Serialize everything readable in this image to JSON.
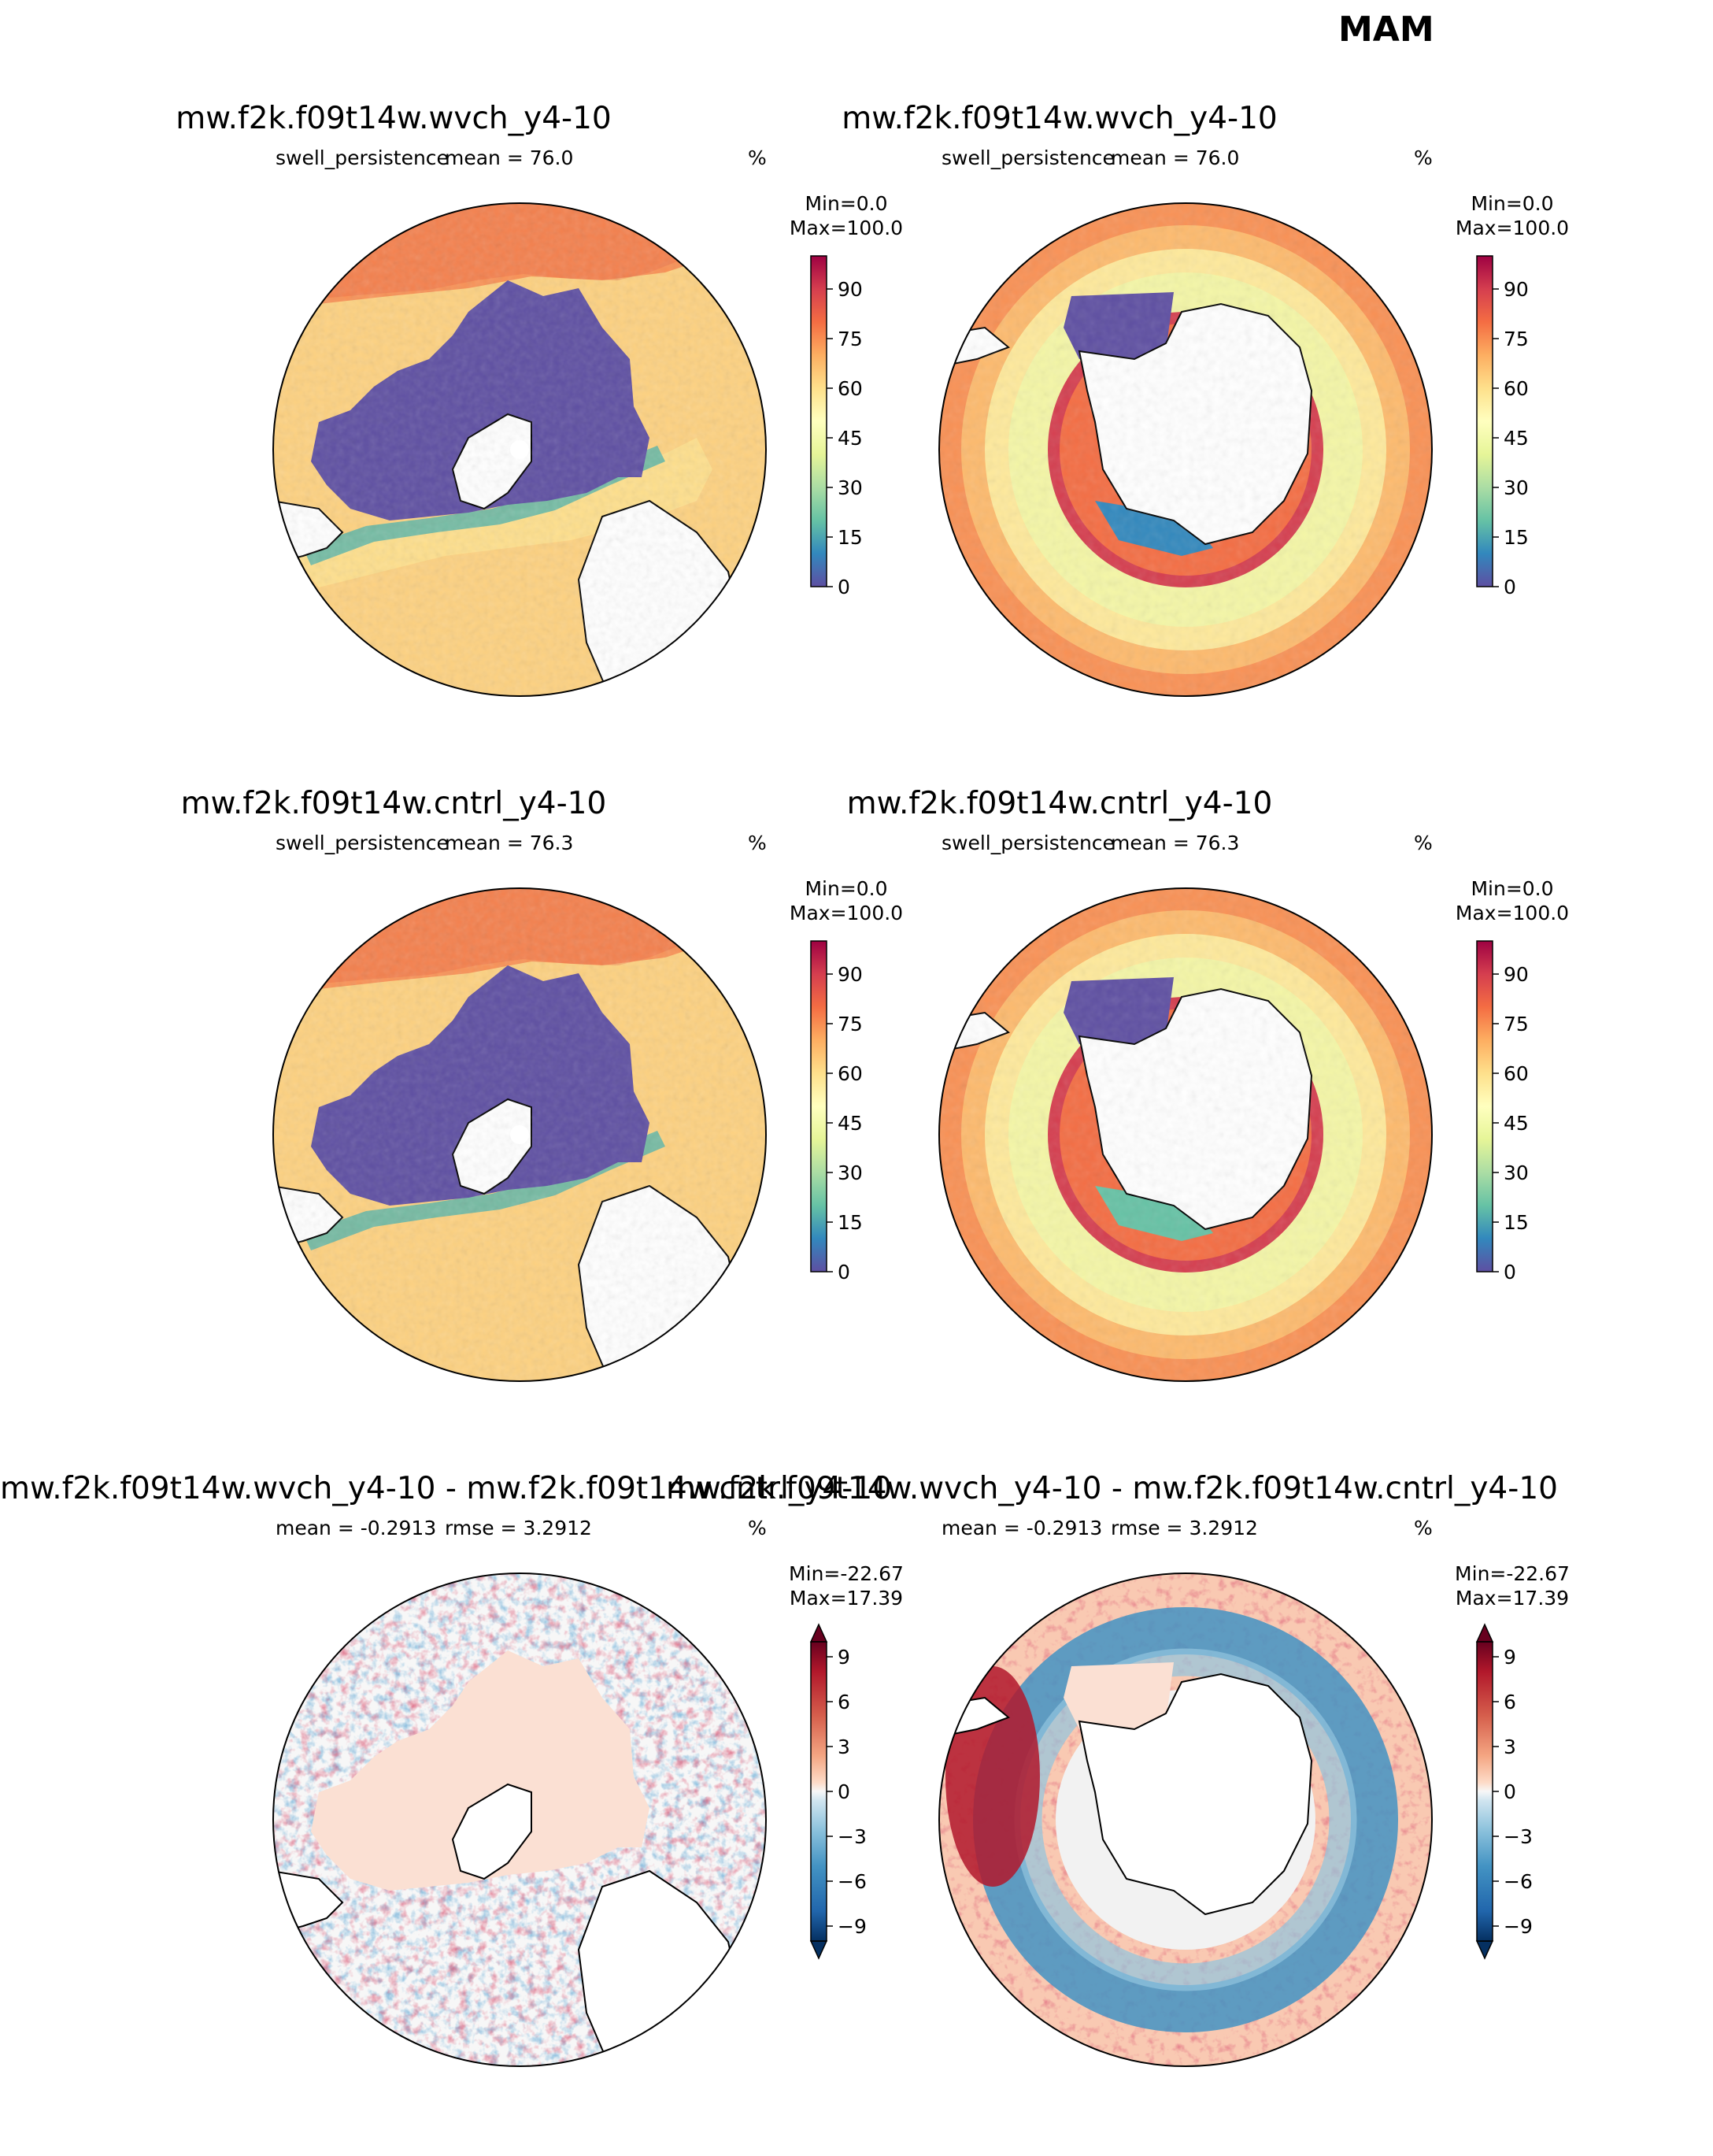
{
  "suptitle": "MAM",
  "chart_data": [
    {
      "type": "heatmap",
      "projection": "north-polar",
      "title": "mw.f2k.f09t14w.wvch_y4-10",
      "left_label": "swell_persistence",
      "center_label": "mean = 76.0",
      "units": "%",
      "minmax": "Min=0.0\nMax=100.0",
      "colormap": "Spectral_r",
      "vmin": 0,
      "vmax": 100,
      "cbar_ticks": [
        "0",
        "15",
        "30",
        "45",
        "60",
        "75",
        "90"
      ],
      "extend": "neither"
    },
    {
      "type": "heatmap",
      "projection": "south-polar",
      "title": "mw.f2k.f09t14w.wvch_y4-10",
      "left_label": "swell_persistence",
      "center_label": "mean = 76.0",
      "units": "%",
      "minmax": "Min=0.0\nMax=100.0",
      "colormap": "Spectral_r",
      "vmin": 0,
      "vmax": 100,
      "cbar_ticks": [
        "0",
        "15",
        "30",
        "45",
        "60",
        "75",
        "90"
      ],
      "extend": "neither"
    },
    {
      "type": "heatmap",
      "projection": "north-polar",
      "title": "mw.f2k.f09t14w.cntrl_y4-10",
      "left_label": "swell_persistence",
      "center_label": "mean = 76.3",
      "units": "%",
      "minmax": "Min=0.0\nMax=100.0",
      "colormap": "Spectral_r",
      "vmin": 0,
      "vmax": 100,
      "cbar_ticks": [
        "0",
        "15",
        "30",
        "45",
        "60",
        "75",
        "90"
      ],
      "extend": "neither"
    },
    {
      "type": "heatmap",
      "projection": "south-polar",
      "title": "mw.f2k.f09t14w.cntrl_y4-10",
      "left_label": "swell_persistence",
      "center_label": "mean = 76.3",
      "units": "%",
      "minmax": "Min=0.0\nMax=100.0",
      "colormap": "Spectral_r",
      "vmin": 0,
      "vmax": 100,
      "cbar_ticks": [
        "0",
        "15",
        "30",
        "45",
        "60",
        "75",
        "90"
      ],
      "extend": "neither"
    },
    {
      "type": "heatmap",
      "projection": "north-polar",
      "title": "mw.f2k.f09t14w.wvch_y4-10 - mw.f2k.f09t14w.cntrl_y4-10",
      "left_label": "mean = -0.2913",
      "center_label": "rmse = 3.2912",
      "units": "%",
      "minmax": "Min=-22.67\nMax=17.39",
      "colormap": "RdBu_r",
      "vmin": -10,
      "vmax": 10,
      "cbar_ticks": [
        "−9",
        "−6",
        "−3",
        "0",
        "3",
        "6",
        "9"
      ],
      "extend": "both"
    },
    {
      "type": "heatmap",
      "projection": "south-polar",
      "title": "mw.f2k.f09t14w.wvch_y4-10 - mw.f2k.f09t14w.cntrl_y4-10",
      "left_label": "mean = -0.2913",
      "center_label": "rmse = 3.2912",
      "units": "%",
      "minmax": "Min=-22.67\nMax=17.39",
      "colormap": "RdBu_r",
      "vmin": -10,
      "vmax": 10,
      "cbar_ticks": [
        "−9",
        "−6",
        "−3",
        "0",
        "3",
        "6",
        "9"
      ],
      "extend": "both"
    }
  ]
}
